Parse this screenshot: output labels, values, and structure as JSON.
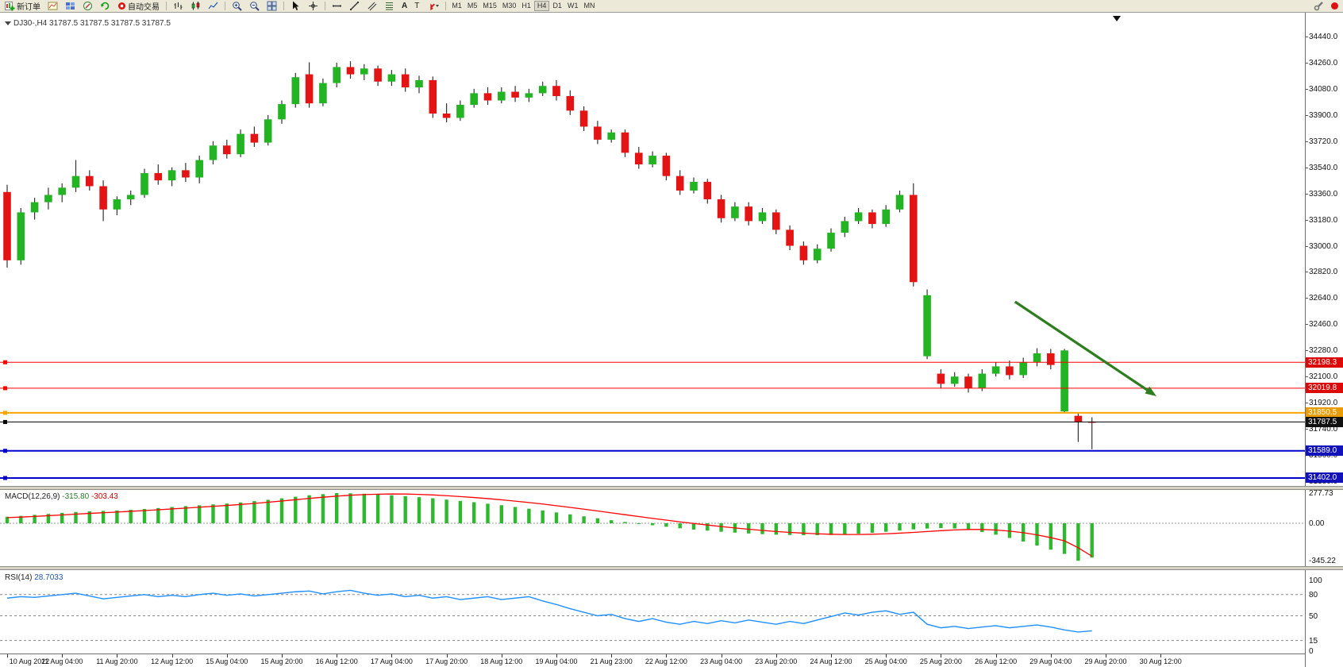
{
  "toolbar": {
    "new_order_label": "新订单",
    "auto_trading_label": "自动交易",
    "timeframes": [
      "M1",
      "M5",
      "M15",
      "M30",
      "H1",
      "H4",
      "D1",
      "W1",
      "MN"
    ],
    "active_timeframe": "H4",
    "text_tool_label": "A",
    "label_tool_label": "T"
  },
  "chart_header": {
    "symbol_ohlc": "DJ30-,H4 31787.5 31787.5 31787.5 31787.5"
  },
  "chart_data": {
    "type": "candlestick",
    "symbol": "DJ30-",
    "timeframe": "H4",
    "open": "31787.5",
    "high": "31787.5",
    "low": "31787.5",
    "close": "31787.5",
    "price_axis": {
      "top": 34440.0,
      "bottom": 31380.0,
      "step": 180
    },
    "colors": {
      "up": "#22b422",
      "down": "#e41414",
      "wick": "#333333",
      "level_red": "#ff0000",
      "level_orange": "#ffa500",
      "level_blue": "#0000cd",
      "level_black": "#000000",
      "macd_hist": "#2db82d",
      "macd_signal": "#ff0000",
      "rsi_line": "#1e90ff",
      "arrow": "#2e7d1e"
    },
    "levels": [
      {
        "price": 32198.3,
        "label": "32198.3",
        "color": "#ff0000",
        "badge": "#dd0808",
        "width": 1
      },
      {
        "price": 32019.8,
        "label": "32019.8",
        "color": "#ff0000",
        "badge": "#dd0808",
        "width": 1
      },
      {
        "price": 31850.5,
        "label": "31850.5",
        "color": "#ffa500",
        "badge": "#e89c00",
        "width": 2
      },
      {
        "price": 31787.5,
        "label": "31787.5",
        "color": "#000000",
        "badge": "#111111",
        "width": 1
      },
      {
        "price": 31589.0,
        "label": "31589.0",
        "color": "#0000cd",
        "badge": "#1212bb",
        "width": 2
      },
      {
        "price": 31402.0,
        "label": "31402.0",
        "color": "#0000cd",
        "badge": "#1212bb",
        "width": 2
      }
    ],
    "candles": [
      [
        33370,
        33420,
        32850,
        32900
      ],
      [
        32900,
        33260,
        32870,
        33230
      ],
      [
        33230,
        33330,
        33180,
        33300
      ],
      [
        33300,
        33400,
        33250,
        33350
      ],
      [
        33350,
        33430,
        33300,
        33400
      ],
      [
        33400,
        33590,
        33370,
        33480
      ],
      [
        33480,
        33520,
        33380,
        33410
      ],
      [
        33410,
        33450,
        33170,
        33250
      ],
      [
        33250,
        33340,
        33210,
        33320
      ],
      [
        33320,
        33380,
        33280,
        33350
      ],
      [
        33350,
        33530,
        33330,
        33500
      ],
      [
        33500,
        33560,
        33420,
        33450
      ],
      [
        33450,
        33540,
        33410,
        33520
      ],
      [
        33520,
        33570,
        33440,
        33470
      ],
      [
        33470,
        33620,
        33430,
        33590
      ],
      [
        33590,
        33720,
        33560,
        33690
      ],
      [
        33690,
        33730,
        33600,
        33630
      ],
      [
        33630,
        33800,
        33610,
        33770
      ],
      [
        33770,
        33820,
        33680,
        33710
      ],
      [
        33710,
        33900,
        33690,
        33870
      ],
      [
        33870,
        34000,
        33840,
        33975
      ],
      [
        33975,
        34190,
        33950,
        34160
      ],
      [
        34180,
        34263,
        33950,
        33980
      ],
      [
        33980,
        34150,
        33960,
        34120
      ],
      [
        34120,
        34260,
        34090,
        34230
      ],
      [
        34230,
        34270,
        34150,
        34180
      ],
      [
        34180,
        34250,
        34140,
        34220
      ],
      [
        34220,
        34240,
        34100,
        34130
      ],
      [
        34130,
        34210,
        34100,
        34180
      ],
      [
        34180,
        34220,
        34060,
        34090
      ],
      [
        34090,
        34170,
        34050,
        34140
      ],
      [
        34140,
        34165,
        33880,
        33910
      ],
      [
        33910,
        33980,
        33850,
        33880
      ],
      [
        33880,
        34000,
        33860,
        33970
      ],
      [
        33970,
        34080,
        33950,
        34050
      ],
      [
        34050,
        34090,
        33970,
        34000
      ],
      [
        34000,
        34090,
        33980,
        34060
      ],
      [
        34060,
        34100,
        33990,
        34020
      ],
      [
        34020,
        34080,
        33990,
        34050
      ],
      [
        34050,
        34130,
        34030,
        34100
      ],
      [
        34100,
        34140,
        34000,
        34030
      ],
      [
        34030,
        34070,
        33900,
        33930
      ],
      [
        33930,
        33960,
        33790,
        33820
      ],
      [
        33820,
        33860,
        33700,
        33730
      ],
      [
        33730,
        33800,
        33710,
        33780
      ],
      [
        33780,
        33800,
        33610,
        33640
      ],
      [
        33640,
        33680,
        33530,
        33560
      ],
      [
        33560,
        33650,
        33540,
        33620
      ],
      [
        33620,
        33640,
        33450,
        33480
      ],
      [
        33480,
        33520,
        33350,
        33380
      ],
      [
        33380,
        33470,
        33360,
        33440
      ],
      [
        33440,
        33460,
        33290,
        33320
      ],
      [
        33320,
        33350,
        33160,
        33190
      ],
      [
        33190,
        33300,
        33170,
        33270
      ],
      [
        33270,
        33300,
        33140,
        33170
      ],
      [
        33170,
        33260,
        33150,
        33230
      ],
      [
        33230,
        33250,
        33080,
        33110
      ],
      [
        33110,
        33140,
        32970,
        33000
      ],
      [
        33000,
        33030,
        32870,
        32900
      ],
      [
        32900,
        33010,
        32880,
        32980
      ],
      [
        32980,
        33120,
        32960,
        33090
      ],
      [
        33090,
        33200,
        33060,
        33170
      ],
      [
        33170,
        33260,
        33150,
        33230
      ],
      [
        33230,
        33250,
        33120,
        33150
      ],
      [
        33150,
        33280,
        33130,
        33250
      ],
      [
        33250,
        33380,
        33230,
        33350
      ],
      [
        33350,
        33430,
        32720,
        32750
      ],
      [
        32240,
        32700,
        32220,
        32660
      ],
      [
        32120,
        32150,
        32020,
        32050
      ],
      [
        32050,
        32130,
        32030,
        32100
      ],
      [
        32100,
        32120,
        31990,
        32020
      ],
      [
        32020,
        32150,
        32000,
        32120
      ],
      [
        32120,
        32200,
        32100,
        32170
      ],
      [
        32170,
        32210,
        32080,
        32110
      ],
      [
        32110,
        32230,
        32090,
        32200
      ],
      [
        32200,
        32295,
        32170,
        32260
      ],
      [
        32260,
        32290,
        32150,
        32180
      ],
      [
        31860,
        32290,
        31850,
        32280
      ],
      [
        31830,
        31850,
        31650,
        31790
      ],
      [
        31790,
        31820,
        31600,
        31787.5
      ]
    ],
    "time_labels": [
      "10 Aug 2022",
      "11 Aug 04:00",
      "11 Aug 20:00",
      "12 Aug 12:00",
      "15 Aug 04:00",
      "15 Aug 20:00",
      "16 Aug 12:00",
      "17 Aug 04:00",
      "17 Aug 20:00",
      "18 Aug 12:00",
      "19 Aug 04:00",
      "21 Aug 23:00",
      "22 Aug 12:00",
      "23 Aug 04:00",
      "23 Aug 20:00",
      "24 Aug 12:00",
      "25 Aug 04:00",
      "25 Aug 20:00",
      "26 Aug 12:00",
      "29 Aug 04:00",
      "29 Aug 20:00",
      "30 Aug 12:00"
    ],
    "arrow_annotation": {
      "from_bar": 73.4,
      "from_price": 32615,
      "to_bar": 83.7,
      "to_price": 31965
    },
    "indicators": {
      "macd": {
        "label": "MACD(12,26,9)",
        "main_value": "-315.80",
        "signal_value": "-303.43",
        "axis": [
          "277.73",
          "0.00",
          "-345.22"
        ],
        "axis_values": [
          277.73,
          0,
          -345.22
        ],
        "histogram": [
          60,
          68,
          78,
          86,
          96,
          104,
          110,
          114,
          118,
          124,
          132,
          140,
          150,
          158,
          166,
          174,
          182,
          192,
          204,
          216,
          230,
          244,
          258,
          268,
          277.73,
          276,
          272,
          266,
          258,
          250,
          240,
          230,
          218,
          206,
          194,
          180,
          166,
          150,
          134,
          118,
          100,
          82,
          64,
          46,
          28,
          12,
          -4,
          -18,
          -32,
          -46,
          -58,
          -68,
          -78,
          -86,
          -94,
          -100,
          -105,
          -108,
          -110,
          -110,
          -108,
          -103,
          -96,
          -88,
          -78,
          -66,
          -56,
          -48,
          -44,
          -48,
          -60,
          -80,
          -105,
          -135,
          -168,
          -205,
          -243,
          -282,
          -345.22,
          -315.8
        ],
        "signal": [
          52,
          57,
          63,
          70,
          77,
          84,
          91,
          97,
          103,
          110,
          117,
          124,
          132,
          140,
          148,
          156,
          164,
          173,
          183,
          194,
          205,
          217,
          229,
          240,
          250,
          258,
          264,
          268,
          270,
          269,
          266,
          261,
          254,
          246,
          237,
          227,
          216,
          204,
          191,
          177,
          162,
          146,
          130,
          113,
          96,
          79,
          62,
          45,
          29,
          13,
          -2,
          -16,
          -30,
          -43,
          -55,
          -66,
          -76,
          -84,
          -91,
          -97,
          -101,
          -103,
          -103,
          -101,
          -97,
          -91,
          -84,
          -76,
          -68,
          -61,
          -57,
          -57,
          -62,
          -72,
          -87,
          -107,
          -132,
          -162,
          -225,
          -303.43
        ]
      },
      "rsi": {
        "label": "RSI(14)",
        "value": "28.7033",
        "axis": [
          "100",
          "80",
          "50",
          "15",
          "0"
        ],
        "axis_values": [
          100,
          80,
          50,
          15,
          0
        ],
        "guide_levels": [
          80,
          50,
          15
        ],
        "values": [
          75,
          77,
          76,
          78,
          80,
          82,
          78,
          74,
          76,
          78,
          80,
          77,
          79,
          77,
          80,
          82,
          79,
          81,
          78,
          80,
          82,
          84,
          85,
          81,
          84,
          86,
          82,
          79,
          81,
          77,
          79,
          75,
          77,
          73,
          75,
          77,
          73,
          75,
          77,
          71,
          66,
          60,
          55,
          50,
          52,
          46,
          42,
          46,
          41,
          38,
          42,
          39,
          43,
          40,
          44,
          41,
          38,
          42,
          39,
          44,
          49,
          54,
          51,
          55,
          57,
          52,
          55,
          38,
          33,
          35,
          32,
          34,
          36,
          33,
          35,
          37,
          34,
          30,
          27,
          28.7033
        ]
      }
    }
  }
}
